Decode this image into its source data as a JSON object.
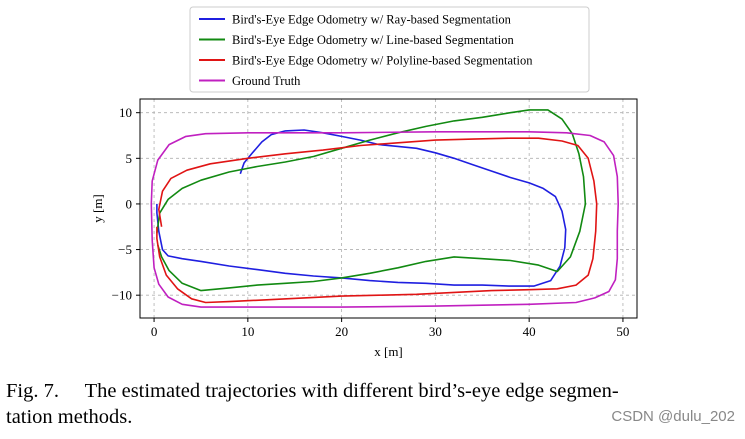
{
  "chart_data": {
    "type": "line",
    "xlabel": "x [m]",
    "ylabel": "y [m]",
    "xlim": [
      -1.5,
      51.5
    ],
    "ylim": [
      -12.5,
      11.5
    ],
    "xticks": [
      0,
      10,
      20,
      30,
      40,
      50
    ],
    "yticks": [
      -10,
      -5,
      0,
      5,
      10
    ],
    "grid": true,
    "legend_position": "top-center",
    "series": [
      {
        "name": "Bird's-Eye Edge Odometry w/ Ray-based Segmentation",
        "color": "#1f1fe0",
        "points": [
          [
            9.2,
            3.3
          ],
          [
            9.6,
            4.5
          ],
          [
            10.5,
            5.6
          ],
          [
            11.5,
            6.8
          ],
          [
            12.5,
            7.6
          ],
          [
            14,
            8.0
          ],
          [
            16,
            8.1
          ],
          [
            18,
            7.8
          ],
          [
            20,
            7.4
          ],
          [
            22,
            7.0
          ],
          [
            24,
            6.5
          ],
          [
            26,
            6.3
          ],
          [
            28,
            6.1
          ],
          [
            30,
            5.6
          ],
          [
            32,
            5.0
          ],
          [
            34,
            4.3
          ],
          [
            36,
            3.6
          ],
          [
            38,
            2.9
          ],
          [
            40,
            2.3
          ],
          [
            41.5,
            1.7
          ],
          [
            42.8,
            0.8
          ],
          [
            43.5,
            -0.8
          ],
          [
            43.9,
            -2.8
          ],
          [
            43.8,
            -4.8
          ],
          [
            43.3,
            -6.8
          ],
          [
            42.3,
            -8.4
          ],
          [
            40.5,
            -9.0
          ],
          [
            38,
            -9.0
          ],
          [
            35,
            -8.9
          ],
          [
            32,
            -8.9
          ],
          [
            29,
            -8.7
          ],
          [
            26,
            -8.6
          ],
          [
            23,
            -8.4
          ],
          [
            20,
            -8.1
          ],
          [
            17,
            -7.9
          ],
          [
            14,
            -7.6
          ],
          [
            11,
            -7.2
          ],
          [
            8,
            -6.8
          ],
          [
            5,
            -6.3
          ],
          [
            3,
            -6.0
          ],
          [
            1.5,
            -5.7
          ],
          [
            0.9,
            -5.0
          ],
          [
            0.5,
            -3.0
          ],
          [
            0.3,
            -1.0
          ],
          [
            0.3,
            0.0
          ]
        ]
      },
      {
        "name": "Bird's-Eye Edge Odometry w/ Line-based Segmentation",
        "color": "#128a12",
        "points": [
          [
            0.3,
            -3.2
          ],
          [
            0.6,
            -1.0
          ],
          [
            1.5,
            0.5
          ],
          [
            3,
            1.7
          ],
          [
            5,
            2.6
          ],
          [
            8,
            3.5
          ],
          [
            11,
            4.1
          ],
          [
            14,
            4.6
          ],
          [
            17,
            5.2
          ],
          [
            20,
            6.1
          ],
          [
            23,
            7.0
          ],
          [
            26,
            7.8
          ],
          [
            29,
            8.5
          ],
          [
            32,
            9.1
          ],
          [
            35,
            9.5
          ],
          [
            38,
            10.0
          ],
          [
            40,
            10.3
          ],
          [
            42,
            10.3
          ],
          [
            43.5,
            9.3
          ],
          [
            44.6,
            7.7
          ],
          [
            45.3,
            5.5
          ],
          [
            45.8,
            3.0
          ],
          [
            46,
            0.0
          ],
          [
            45.4,
            -3.0
          ],
          [
            44.4,
            -5.8
          ],
          [
            43,
            -7.4
          ],
          [
            41,
            -6.7
          ],
          [
            38,
            -6.2
          ],
          [
            35,
            -6.0
          ],
          [
            32,
            -5.8
          ],
          [
            29,
            -6.3
          ],
          [
            26,
            -7.0
          ],
          [
            23,
            -7.6
          ],
          [
            20,
            -8.1
          ],
          [
            17,
            -8.5
          ],
          [
            14,
            -8.7
          ],
          [
            11,
            -8.9
          ],
          [
            8,
            -9.2
          ],
          [
            5,
            -9.5
          ],
          [
            3,
            -8.7
          ],
          [
            1.6,
            -7.3
          ],
          [
            0.8,
            -5.8
          ],
          [
            0.4,
            -4.5
          ]
        ]
      },
      {
        "name": "Bird's-Eye Edge Odometry w/ Polyline-based Segmentation",
        "color": "#e01414",
        "points": [
          [
            0.8,
            -2.5
          ],
          [
            0.5,
            -0.6
          ],
          [
            0.9,
            1.4
          ],
          [
            1.8,
            2.8
          ],
          [
            3.5,
            3.7
          ],
          [
            6,
            4.4
          ],
          [
            10,
            5.0
          ],
          [
            14,
            5.5
          ],
          [
            18,
            5.9
          ],
          [
            22,
            6.4
          ],
          [
            26,
            6.7
          ],
          [
            30,
            7.0
          ],
          [
            34,
            7.1
          ],
          [
            38,
            7.2
          ],
          [
            41,
            7.2
          ],
          [
            43.5,
            6.9
          ],
          [
            45.2,
            6.4
          ],
          [
            46.3,
            5.0
          ],
          [
            46.9,
            2.5
          ],
          [
            47.2,
            0.0
          ],
          [
            47.1,
            -3.0
          ],
          [
            46.8,
            -6.0
          ],
          [
            46.3,
            -7.8
          ],
          [
            45,
            -8.9
          ],
          [
            43,
            -9.3
          ],
          [
            40,
            -9.4
          ],
          [
            36,
            -9.5
          ],
          [
            32,
            -9.7
          ],
          [
            28,
            -9.9
          ],
          [
            24,
            -10.0
          ],
          [
            20,
            -10.1
          ],
          [
            16,
            -10.3
          ],
          [
            12,
            -10.5
          ],
          [
            8,
            -10.7
          ],
          [
            5.5,
            -10.8
          ],
          [
            4,
            -10.4
          ],
          [
            2.5,
            -9.3
          ],
          [
            1.3,
            -7.8
          ],
          [
            0.6,
            -5.8
          ],
          [
            0.3,
            -3.8
          ],
          [
            0.3,
            -2.5
          ]
        ]
      },
      {
        "name": "Ground Truth",
        "color": "#c020c0",
        "points": [
          [
            -0.3,
            0.0
          ],
          [
            -0.2,
            2.5
          ],
          [
            0.4,
            4.8
          ],
          [
            1.6,
            6.5
          ],
          [
            3.4,
            7.4
          ],
          [
            5.5,
            7.7
          ],
          [
            10,
            7.8
          ],
          [
            20,
            7.8
          ],
          [
            30,
            7.9
          ],
          [
            40,
            7.9
          ],
          [
            44,
            7.8
          ],
          [
            46.5,
            7.5
          ],
          [
            48,
            6.8
          ],
          [
            49,
            5.3
          ],
          [
            49.4,
            3.0
          ],
          [
            49.5,
            0.0
          ],
          [
            49.4,
            -3.0
          ],
          [
            49.4,
            -6.0
          ],
          [
            49.2,
            -8.3
          ],
          [
            48.5,
            -9.6
          ],
          [
            47,
            -10.3
          ],
          [
            45,
            -10.8
          ],
          [
            40,
            -11.0
          ],
          [
            30,
            -11.2
          ],
          [
            20,
            -11.3
          ],
          [
            10,
            -11.3
          ],
          [
            5,
            -11.3
          ],
          [
            3,
            -11.0
          ],
          [
            1.5,
            -10.2
          ],
          [
            0.5,
            -8.8
          ],
          [
            0.0,
            -7.0
          ],
          [
            -0.2,
            -4.0
          ],
          [
            -0.3,
            0.0
          ]
        ]
      }
    ]
  },
  "caption": {
    "line1": "Fig. 7.  The estimated trajectories with different bird’s-eye edge segmen-",
    "line2": "tation methods."
  },
  "watermark": "CSDN @dulu_202"
}
